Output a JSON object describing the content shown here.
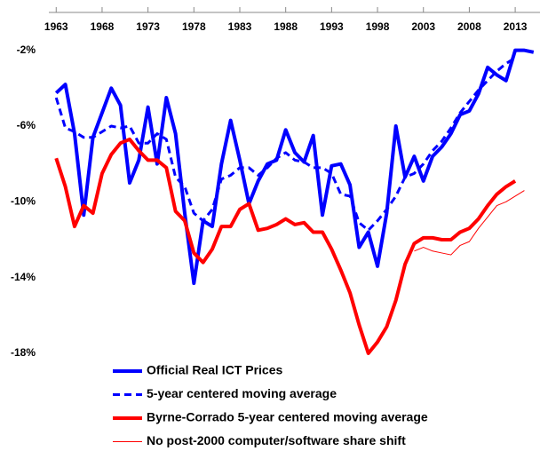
{
  "chart_data": {
    "type": "line",
    "x": [
      1963,
      1964,
      1965,
      1966,
      1967,
      1968,
      1969,
      1970,
      1971,
      1972,
      1973,
      1974,
      1975,
      1976,
      1977,
      1978,
      1979,
      1980,
      1981,
      1982,
      1983,
      1984,
      1985,
      1986,
      1987,
      1988,
      1989,
      1990,
      1991,
      1992,
      1993,
      1994,
      1995,
      1996,
      1997,
      1998,
      1999,
      2000,
      2001,
      2002,
      2003,
      2004,
      2005,
      2006,
      2007,
      2008,
      2009,
      2010,
      2011,
      2012,
      2013,
      2014,
      2015
    ],
    "xlim": [
      1962.2,
      2015.7
    ],
    "xticks": [
      1963,
      1968,
      1973,
      1978,
      1983,
      1988,
      1993,
      1998,
      2003,
      2008,
      2013
    ],
    "ylim": [
      -18,
      0
    ],
    "yticks": [
      {
        "value": -2,
        "label": "-2%"
      },
      {
        "value": -6,
        "label": "-6%"
      },
      {
        "value": -10,
        "label": "-10%"
      },
      {
        "value": -14,
        "label": "-14%"
      },
      {
        "value": -18,
        "label": "-18%"
      }
    ],
    "series": [
      {
        "name": "Official Real ICT Prices",
        "color": "#0000ff",
        "style": "solid",
        "width": 4,
        "values": [
          -4.25,
          -3.8,
          -6.4,
          -10.7,
          -6.6,
          -5.3,
          -4.0,
          -4.9,
          -9.0,
          -7.8,
          -5.0,
          -8.0,
          -4.5,
          -6.4,
          -10.6,
          -14.3,
          -11.0,
          -11.3,
          -8.0,
          -5.7,
          -7.8,
          -10.1,
          -8.9,
          -8.0,
          -7.8,
          -6.2,
          -7.4,
          -7.9,
          -6.5,
          -10.7,
          -8.1,
          -8.0,
          -9.1,
          -12.4,
          -11.6,
          -13.4,
          -10.6,
          -6.0,
          -8.7,
          -7.6,
          -8.9,
          -7.6,
          -7.1,
          -6.4,
          -5.4,
          -5.2,
          -4.3,
          -2.9,
          -3.3,
          -3.6,
          -2.0,
          -2.0,
          -2.1
        ]
      },
      {
        "name": "5-year centered moving average",
        "color": "#0000ff",
        "style": "dashed",
        "width": 3,
        "values": [
          -4.5,
          -6.1,
          -6.3,
          -6.6,
          -6.6,
          -6.3,
          -6.0,
          -6.1,
          -6.0,
          -6.9,
          -6.9,
          -6.4,
          -6.7,
          -8.7,
          -9.2,
          -10.6,
          -11.0,
          -10.4,
          -8.8,
          -8.6,
          -8.2,
          -8.2,
          -8.6,
          -8.2,
          -7.7,
          -7.4,
          -7.8,
          -7.9,
          -8.2,
          -8.2,
          -8.5,
          -9.6,
          -9.7,
          -11.1,
          -11.5,
          -11.0,
          -10.4,
          -9.7,
          -8.7,
          -8.5,
          -8.0,
          -7.3,
          -6.8,
          -6.1,
          -5.3,
          -4.7,
          -4.1,
          -3.6,
          -3.1,
          -2.7,
          -2.4,
          null,
          null
        ]
      },
      {
        "name": "Byrne-Corrado 5-year centered moving average",
        "color": "#ff0000",
        "style": "solid",
        "width": 4,
        "values": [
          -7.7,
          -9.2,
          -11.3,
          -10.2,
          -10.6,
          -8.5,
          -7.5,
          -6.9,
          -6.7,
          -7.3,
          -7.8,
          -7.8,
          -8.2,
          -10.5,
          -11.0,
          -12.7,
          -13.2,
          -12.5,
          -11.3,
          -11.3,
          -10.4,
          -10.1,
          -11.5,
          -11.4,
          -11.2,
          -10.9,
          -11.2,
          -11.1,
          -11.6,
          -11.6,
          -12.5,
          -13.6,
          -14.8,
          -16.5,
          -18.0,
          -17.4,
          -16.6,
          -15.2,
          -13.3,
          -12.2,
          -11.9,
          -11.9,
          -12.0,
          -12.0,
          -11.6,
          -11.4,
          -10.9,
          -10.2,
          -9.6,
          -9.2,
          -8.9,
          null,
          null
        ]
      },
      {
        "name": "No post-2000 computer/software share shift",
        "color": "#ff0000",
        "style": "solid",
        "width": 1,
        "values": [
          null,
          null,
          null,
          null,
          null,
          null,
          null,
          null,
          null,
          null,
          null,
          null,
          null,
          null,
          null,
          null,
          null,
          null,
          null,
          null,
          null,
          null,
          null,
          null,
          null,
          null,
          null,
          null,
          null,
          null,
          null,
          null,
          null,
          null,
          null,
          null,
          null,
          null,
          null,
          -12.6,
          -12.4,
          -12.6,
          -12.7,
          -12.8,
          -12.3,
          -12.1,
          -11.4,
          -10.8,
          -10.2,
          -10.0,
          -9.7,
          -9.4,
          null
        ]
      }
    ]
  }
}
